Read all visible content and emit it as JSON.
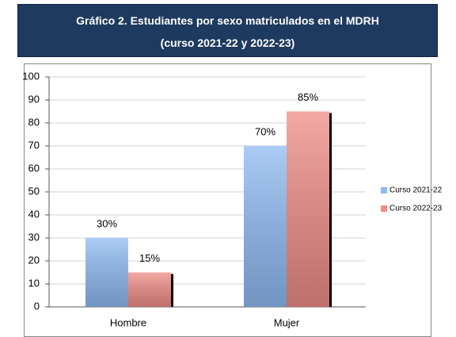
{
  "chart_data": {
    "type": "bar",
    "title": "Gráfico 2. Estudiantes por sexo matriculados en el MDRH",
    "subtitle": "(curso 2021-22 y 2022-23)",
    "categories": [
      "Hombre",
      "Mujer"
    ],
    "series": [
      {
        "name": "Curso 2021-22",
        "color": "#8fbaf3",
        "values": [
          30,
          70
        ],
        "value_labels": [
          "30%",
          "70%"
        ]
      },
      {
        "name": "Curso 2022-23",
        "color": "#f08c86",
        "values": [
          15,
          85
        ],
        "value_labels": [
          "15%",
          "85%"
        ]
      }
    ],
    "ylim": [
      0,
      100
    ],
    "yticks": [
      0,
      10,
      20,
      30,
      40,
      50,
      60,
      70,
      80,
      90,
      100
    ],
    "grid": true,
    "legend": "right"
  }
}
